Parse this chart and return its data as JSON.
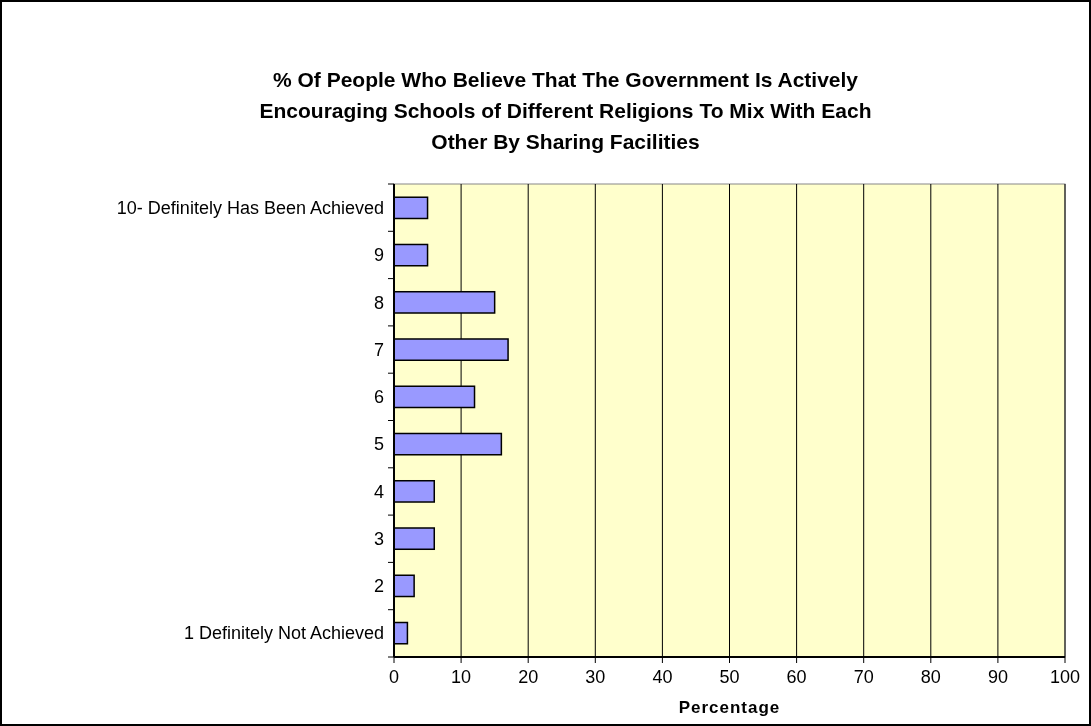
{
  "chart_data": {
    "type": "bar",
    "orientation": "horizontal",
    "title": "% Of People Who Believe That The Government Is Actively Encouraging Schools of Different Religions To Mix With Each Other By Sharing Facilities",
    "categories": [
      "10- Definitely Has Been Achieved",
      "9",
      "8",
      "7",
      "6",
      "5",
      "4",
      "3",
      "2",
      "1 Definitely Not Achieved"
    ],
    "values": [
      5,
      5,
      15,
      17,
      12,
      16,
      6,
      6,
      3,
      2
    ],
    "color": "#9999ff",
    "xlabel": "Percentage",
    "xlim": [
      0,
      100
    ],
    "xticks": [
      0,
      10,
      20,
      30,
      40,
      50,
      60,
      70,
      80,
      90,
      100
    ],
    "grid": "x"
  }
}
